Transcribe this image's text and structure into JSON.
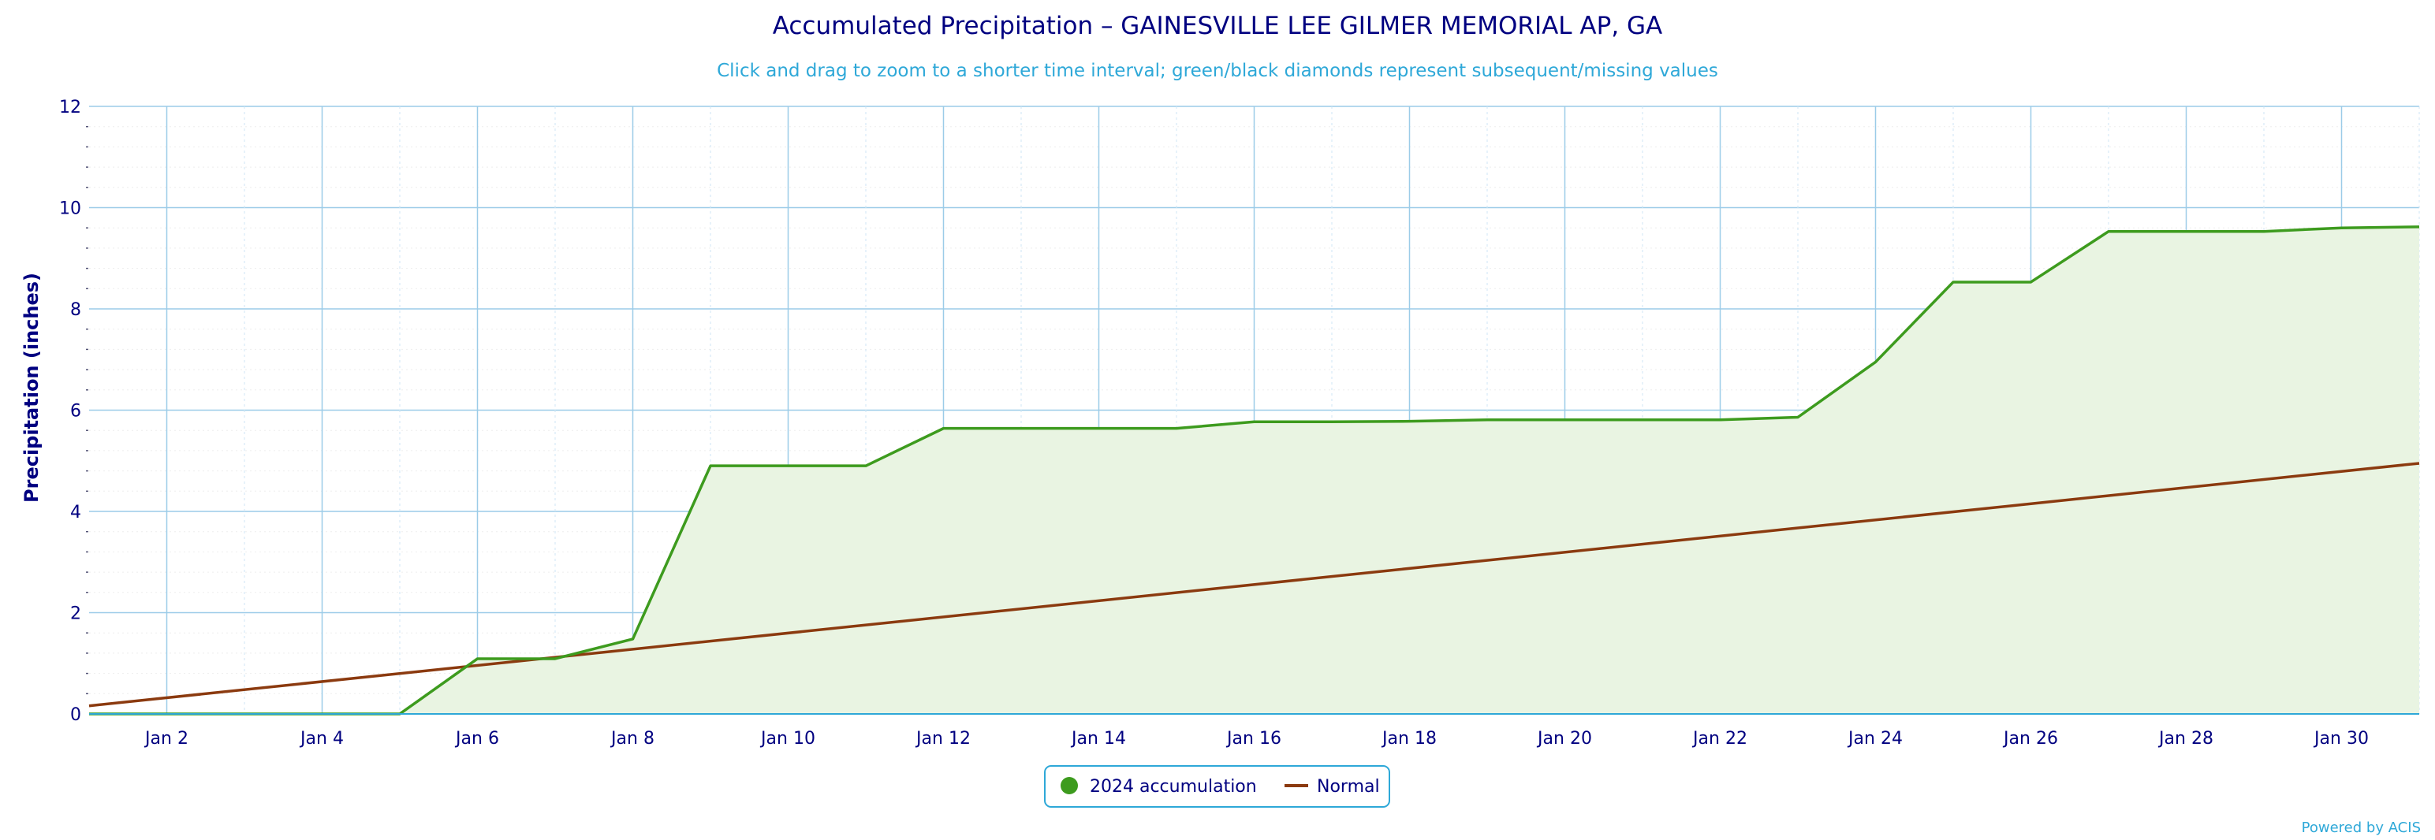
{
  "chart_data": {
    "type": "area",
    "title": "Accumulated Precipitation – GAINESVILLE LEE GILMER MEMORIAL AP, GA",
    "subtitle": "Click and drag to zoom to a shorter time interval; green/black diamonds represent subsequent/missing values",
    "ylabel": "Precipitation (inches)",
    "xlabel": "",
    "ylim": [
      0,
      12
    ],
    "xlim": [
      1,
      31
    ],
    "y_ticks": [
      0,
      2,
      4,
      6,
      8,
      10,
      12
    ],
    "x_ticks": [
      2,
      4,
      6,
      8,
      10,
      12,
      14,
      16,
      18,
      20,
      22,
      24,
      26,
      28,
      30
    ],
    "x_tick_labels": [
      "Jan 2",
      "Jan 4",
      "Jan 6",
      "Jan 8",
      "Jan 10",
      "Jan 12",
      "Jan 14",
      "Jan 16",
      "Jan 18",
      "Jan 20",
      "Jan 22",
      "Jan 24",
      "Jan 26",
      "Jan 28",
      "Jan 30"
    ],
    "grid": true,
    "legend_position": "bottom-center",
    "series": [
      {
        "name": "2024 accumulation",
        "color": "#3d9b1e",
        "fill": "#e9f4e2",
        "x": [
          1,
          2,
          3,
          4,
          5,
          6,
          7,
          8,
          9,
          10,
          11,
          12,
          13,
          14,
          15,
          16,
          17,
          18,
          19,
          20,
          21,
          22,
          23,
          24,
          25,
          26,
          27,
          28,
          29,
          30,
          31
        ],
        "values": [
          0.0,
          0.0,
          0.0,
          0.0,
          0.0,
          1.09,
          1.09,
          1.48,
          4.9,
          4.9,
          4.9,
          5.64,
          5.64,
          5.64,
          5.64,
          5.77,
          5.77,
          5.78,
          5.81,
          5.81,
          5.81,
          5.81,
          5.86,
          6.95,
          8.53,
          8.53,
          9.53,
          9.53,
          9.53,
          9.6,
          9.62
        ]
      },
      {
        "name": "Normal",
        "color": "#8b3a0f",
        "x": [
          1,
          31
        ],
        "values": [
          0.16,
          4.95
        ]
      }
    ]
  },
  "credits": "Powered by ACIS"
}
